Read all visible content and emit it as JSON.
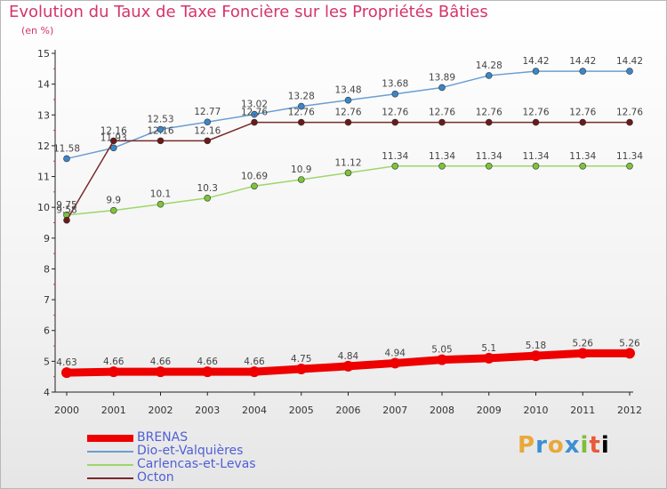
{
  "chart_data": {
    "type": "line",
    "title": "Evolution du Taux de Taxe Foncière sur les Propriétés Bâties",
    "subtitle": "(en %)",
    "x": [
      "2000",
      "2001",
      "2002",
      "2003",
      "2004",
      "2005",
      "2006",
      "2007",
      "2008",
      "2009",
      "2010",
      "2011",
      "2012"
    ],
    "ylim": [
      4,
      15
    ],
    "yticks": [
      4,
      5,
      6,
      7,
      8,
      9,
      10,
      11,
      12,
      13,
      14,
      15
    ],
    "grid": false,
    "legend_position": "bottom-left",
    "series": [
      {
        "name": "BRENAS",
        "color": "#ee0000",
        "values": [
          4.63,
          4.66,
          4.66,
          4.66,
          4.66,
          4.75,
          4.84,
          4.94,
          5.05,
          5.1,
          5.18,
          5.26,
          5.26
        ],
        "labels": [
          "4.63",
          "4.66",
          "4.66",
          "4.66",
          "4.66",
          "4.75",
          "4.84",
          "4.94",
          "5.05",
          "5.1",
          "5.18",
          "5.26",
          "5.26"
        ]
      },
      {
        "name": "Dio-et-Valquières",
        "color": "#6a9fd0",
        "marker": "#3a86c8",
        "values": [
          11.58,
          11.93,
          12.53,
          12.77,
          13.02,
          13.28,
          13.48,
          13.68,
          13.89,
          14.28,
          14.42,
          14.42,
          14.42
        ],
        "labels": [
          "11.58",
          "11.93",
          "12.53",
          "12.77",
          "13.02",
          "13.28",
          "13.48",
          "13.68",
          "13.89",
          "14.28",
          "14.42",
          "14.42",
          "14.42"
        ]
      },
      {
        "name": "Carlencas-et-Levas",
        "color": "#9ed66a",
        "marker": "#7cc43a",
        "values": [
          9.75,
          9.9,
          10.1,
          10.3,
          10.69,
          10.9,
          11.12,
          11.34,
          11.34,
          11.34,
          11.34,
          11.34,
          11.34
        ],
        "labels": [
          "9.75",
          "9.9",
          "10.1",
          "10.3",
          "10.69",
          "10.9",
          "11.12",
          "11.34",
          "11.34",
          "11.34",
          "11.34",
          "11.34",
          "11.34"
        ]
      },
      {
        "name": "Octon",
        "color": "#7a2a2a",
        "marker": "#6a1a1a",
        "values": [
          9.58,
          12.16,
          12.16,
          12.16,
          12.76,
          12.76,
          12.76,
          12.76,
          12.76,
          12.76,
          12.76,
          12.76,
          12.76
        ],
        "labels": [
          "9.58",
          "12.16",
          "12.16",
          "12.16",
          "12.76",
          "12.76",
          "12.76",
          "12.76",
          "12.76",
          "12.76",
          "12.76",
          "12.76",
          "12.76"
        ]
      }
    ]
  },
  "logo_text": [
    "P",
    "r",
    "o",
    "x",
    "i",
    "t",
    "i"
  ]
}
